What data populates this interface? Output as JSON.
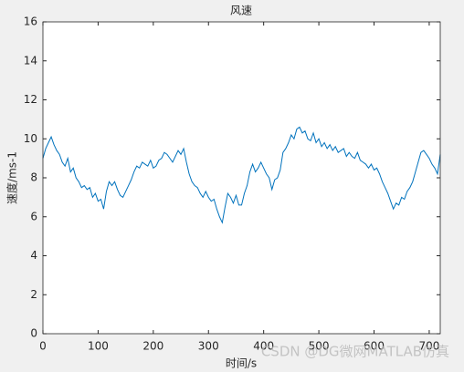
{
  "chart_data": {
    "type": "line",
    "title": "风速",
    "xlabel": "时间/s",
    "ylabel": "速度/ms-1",
    "x": [
      0,
      5,
      10,
      15,
      20,
      25,
      30,
      35,
      40,
      45,
      50,
      55,
      60,
      65,
      70,
      75,
      80,
      85,
      90,
      95,
      100,
      105,
      110,
      115,
      120,
      125,
      130,
      135,
      140,
      145,
      150,
      155,
      160,
      165,
      170,
      175,
      180,
      185,
      190,
      195,
      200,
      205,
      210,
      215,
      220,
      225,
      230,
      235,
      240,
      245,
      250,
      255,
      260,
      265,
      270,
      275,
      280,
      285,
      290,
      295,
      300,
      305,
      310,
      315,
      320,
      325,
      330,
      335,
      340,
      345,
      350,
      355,
      360,
      365,
      370,
      375,
      380,
      385,
      390,
      395,
      400,
      405,
      410,
      415,
      420,
      425,
      430,
      435,
      440,
      445,
      450,
      455,
      460,
      465,
      470,
      475,
      480,
      485,
      490,
      495,
      500,
      505,
      510,
      515,
      520,
      525,
      530,
      535,
      540,
      545,
      550,
      555,
      560,
      565,
      570,
      575,
      580,
      585,
      590,
      595,
      600,
      605,
      610,
      615,
      620,
      625,
      630,
      635,
      640,
      645,
      650,
      655,
      660,
      665,
      670,
      675,
      680,
      685,
      690,
      695,
      700,
      705,
      710,
      715,
      720
    ],
    "values": [
      9.0,
      9.5,
      9.8,
      10.1,
      9.7,
      9.4,
      9.2,
      8.8,
      8.6,
      9.0,
      8.3,
      8.5,
      8.0,
      7.8,
      7.5,
      7.6,
      7.4,
      7.5,
      7.0,
      7.2,
      6.8,
      6.9,
      6.4,
      7.3,
      7.8,
      7.6,
      7.8,
      7.4,
      7.1,
      7.0,
      7.3,
      7.6,
      7.9,
      8.3,
      8.6,
      8.5,
      8.8,
      8.7,
      8.6,
      8.9,
      8.5,
      8.6,
      8.9,
      9.0,
      9.3,
      9.2,
      9.0,
      8.8,
      9.1,
      9.4,
      9.2,
      9.5,
      8.8,
      8.2,
      7.8,
      7.6,
      7.5,
      7.2,
      7.0,
      7.3,
      7.0,
      6.8,
      6.9,
      6.4,
      6.0,
      5.7,
      6.5,
      7.2,
      7.0,
      6.7,
      7.1,
      6.6,
      6.6,
      7.2,
      7.6,
      8.3,
      8.7,
      8.3,
      8.5,
      8.8,
      8.5,
      8.2,
      8.0,
      7.4,
      7.9,
      8.0,
      8.4,
      9.3,
      9.5,
      9.8,
      10.2,
      10.0,
      10.5,
      10.6,
      10.3,
      10.4,
      10.0,
      9.9,
      10.3,
      9.8,
      10.0,
      9.6,
      9.8,
      9.5,
      9.7,
      9.4,
      9.6,
      9.3,
      9.4,
      9.5,
      9.1,
      9.3,
      9.1,
      9.0,
      9.3,
      8.9,
      8.8,
      8.7,
      8.5,
      8.7,
      8.4,
      8.5,
      8.2,
      7.8,
      7.5,
      7.2,
      6.8,
      6.4,
      6.7,
      6.6,
      7.0,
      6.9,
      7.3,
      7.5,
      7.8,
      8.3,
      8.8,
      9.3,
      9.4,
      9.2,
      9.0,
      8.7,
      8.5,
      8.2,
      9.2
    ],
    "color": "#0072bd",
    "xlim": [
      0,
      720
    ],
    "xticks": [
      0,
      100,
      200,
      300,
      400,
      500,
      600,
      700
    ],
    "ylim": [
      0,
      16
    ],
    "yticks": [
      0,
      2,
      4,
      6,
      8,
      10,
      12,
      14,
      16
    ],
    "grid": false,
    "watermark": "CSDN @DG微网MATLAB仿真"
  }
}
